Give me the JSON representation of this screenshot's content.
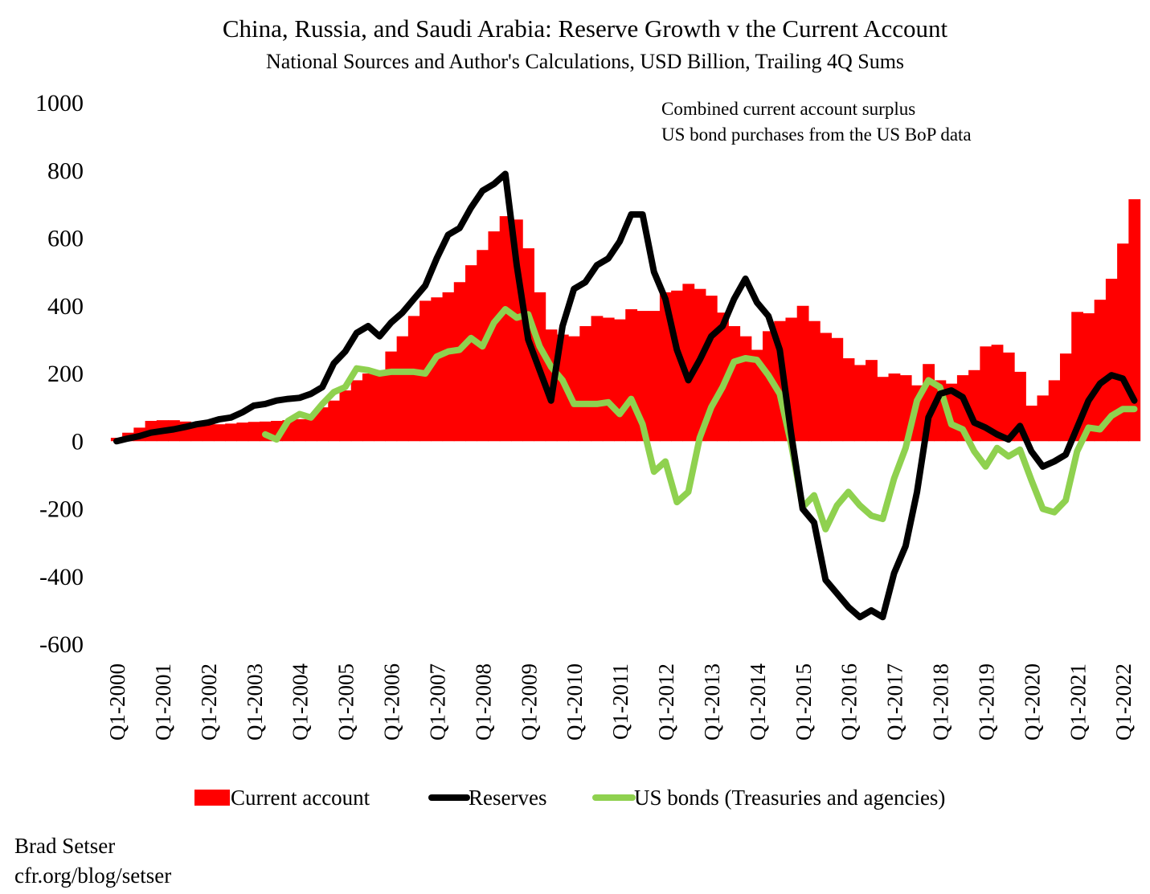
{
  "chart_data": {
    "type": "bar+line",
    "title": "China, Russia, and Saudi Arabia: Reserve Growth v the Current Account",
    "subtitle": "National Sources and Author's Calculations, USD Billion, Trailing 4Q Sums",
    "annotation": [
      "Combined current account surplus",
      "US bond purchases from the US BoP data"
    ],
    "xlabel": "",
    "ylabel": "",
    "ylim": [
      -600,
      1000
    ],
    "yticks": [
      1000,
      800,
      600,
      400,
      200,
      0,
      -200,
      -400,
      -600
    ],
    "xtick_labels": [
      "Q1-2000",
      "Q1-2001",
      "Q1-2002",
      "Q1-2003",
      "Q1-2004",
      "Q1-2005",
      "Q1-2006",
      "Q1-2007",
      "Q1-2008",
      "Q1-2009",
      "Q1-2010",
      "Q1-2011",
      "Q1-2012",
      "Q1-2013",
      "Q1-2014",
      "Q1-2015",
      "Q1-2016",
      "Q1-2017",
      "Q1-2018",
      "Q1-2019",
      "Q1-2020",
      "Q1-2021",
      "Q1-2022"
    ],
    "x_range": [
      "Q1-2000",
      "Q2-2022"
    ],
    "grid": false,
    "legend_position": "bottom",
    "series": [
      {
        "name": "Current account",
        "type": "bar",
        "color": "#ff0000",
        "values": [
          10,
          25,
          40,
          60,
          62,
          62,
          58,
          52,
          50,
          50,
          52,
          55,
          57,
          58,
          60,
          62,
          65,
          80,
          100,
          120,
          150,
          180,
          200,
          205,
          265,
          310,
          370,
          415,
          425,
          440,
          470,
          520,
          565,
          620,
          665,
          655,
          570,
          440,
          330,
          315,
          310,
          340,
          370,
          365,
          360,
          390,
          385,
          385,
          440,
          445,
          465,
          450,
          430,
          380,
          340,
          310,
          270,
          325,
          355,
          365,
          400,
          355,
          320,
          305,
          245,
          225,
          240,
          190,
          200,
          195,
          165,
          228,
          180,
          170,
          195,
          210,
          280,
          285,
          262,
          205,
          105,
          135,
          180,
          259,
          382,
          378,
          418,
          480,
          584,
          715
        ]
      },
      {
        "name": "Reserves",
        "type": "line",
        "color": "#000000",
        "values": [
          0,
          8,
          15,
          25,
          30,
          35,
          42,
          50,
          55,
          65,
          70,
          85,
          105,
          110,
          120,
          125,
          128,
          140,
          160,
          230,
          265,
          320,
          340,
          310,
          350,
          380,
          420,
          460,
          540,
          610,
          630,
          690,
          740,
          760,
          790,
          520,
          300,
          210,
          120,
          340,
          450,
          470,
          520,
          540,
          590,
          670,
          670,
          500,
          420,
          270,
          180,
          240,
          310,
          340,
          420,
          480,
          410,
          370,
          270,
          20,
          -200,
          -240,
          -410,
          -450,
          -490,
          -520,
          -500,
          -520,
          -390,
          -310,
          -150,
          70,
          140,
          150,
          130,
          55,
          40,
          20,
          5,
          45,
          -30,
          -75,
          -60,
          -40,
          40,
          120,
          170,
          195,
          185,
          120
        ]
      },
      {
        "name": "US bonds (Treasuries and agencies)",
        "type": "line",
        "color": "#8fd14f",
        "values": [
          null,
          null,
          null,
          null,
          null,
          null,
          null,
          null,
          null,
          null,
          null,
          null,
          null,
          20,
          5,
          60,
          80,
          70,
          110,
          145,
          160,
          215,
          210,
          200,
          205,
          205,
          205,
          200,
          250,
          265,
          270,
          305,
          280,
          350,
          390,
          365,
          375,
          280,
          220,
          180,
          110,
          110,
          110,
          115,
          80,
          125,
          50,
          -90,
          -60,
          -180,
          -150,
          10,
          100,
          160,
          235,
          245,
          240,
          195,
          140,
          -10,
          -195,
          -160,
          -260,
          -190,
          -150,
          -190,
          -220,
          -230,
          -110,
          -20,
          120,
          180,
          160,
          50,
          35,
          -30,
          -75,
          -20,
          -45,
          -25,
          -115,
          -200,
          -210,
          -175,
          -30,
          40,
          35,
          75,
          95,
          95
        ]
      }
    ]
  },
  "footer": {
    "author": "Brad Setser",
    "url": "cfr.org/blog/setser"
  }
}
